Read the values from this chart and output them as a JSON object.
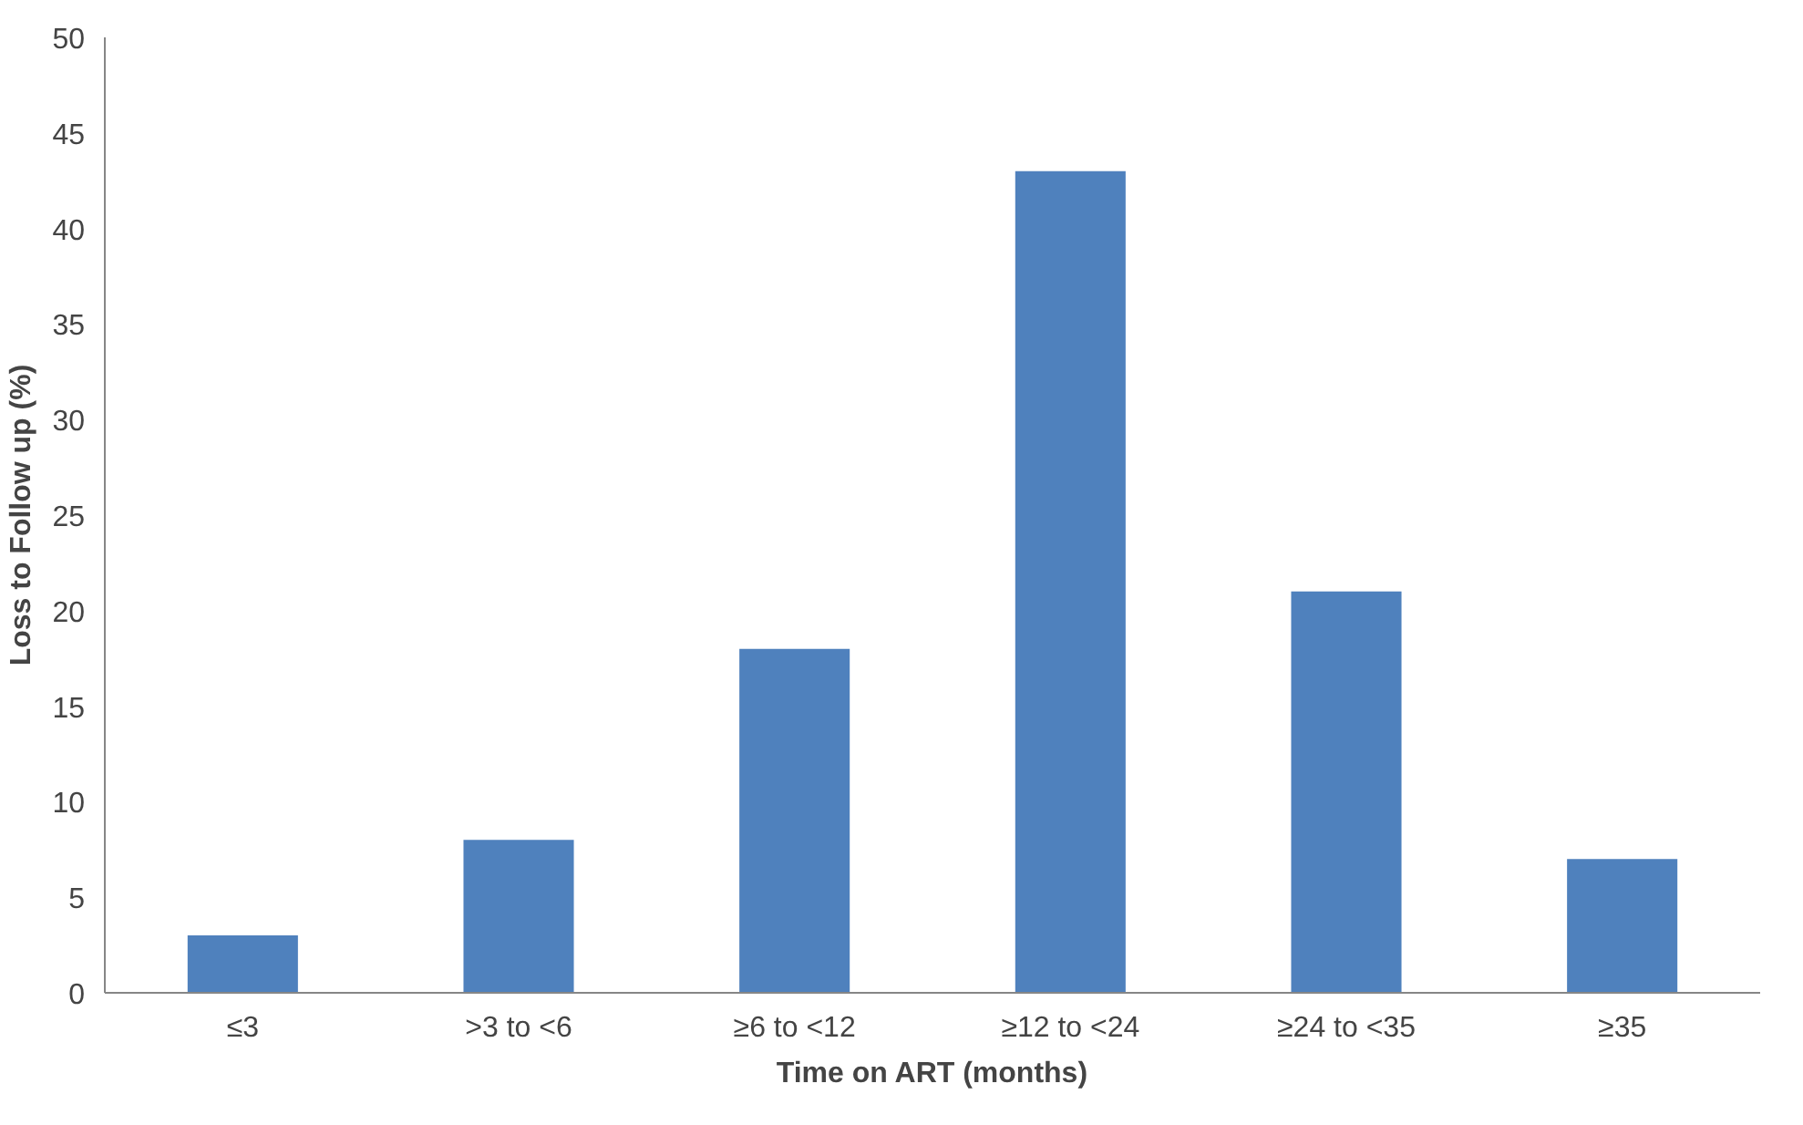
{
  "chart_data": {
    "type": "bar",
    "xlabel": "Time on ART (months)",
    "ylabel": "Loss to Follow up (%)",
    "categories": [
      "≤3",
      ">3 to <6",
      "≥6 to <12",
      "≥12 to <24",
      "≥24 to <35",
      "≥35"
    ],
    "values": [
      3,
      8,
      18,
      43,
      21,
      7
    ],
    "color": "#4f81bd",
    "ylim": [
      0,
      50
    ],
    "yticks": [
      0,
      5,
      10,
      15,
      20,
      25,
      30,
      35,
      40,
      45,
      50
    ],
    "grid": false
  }
}
